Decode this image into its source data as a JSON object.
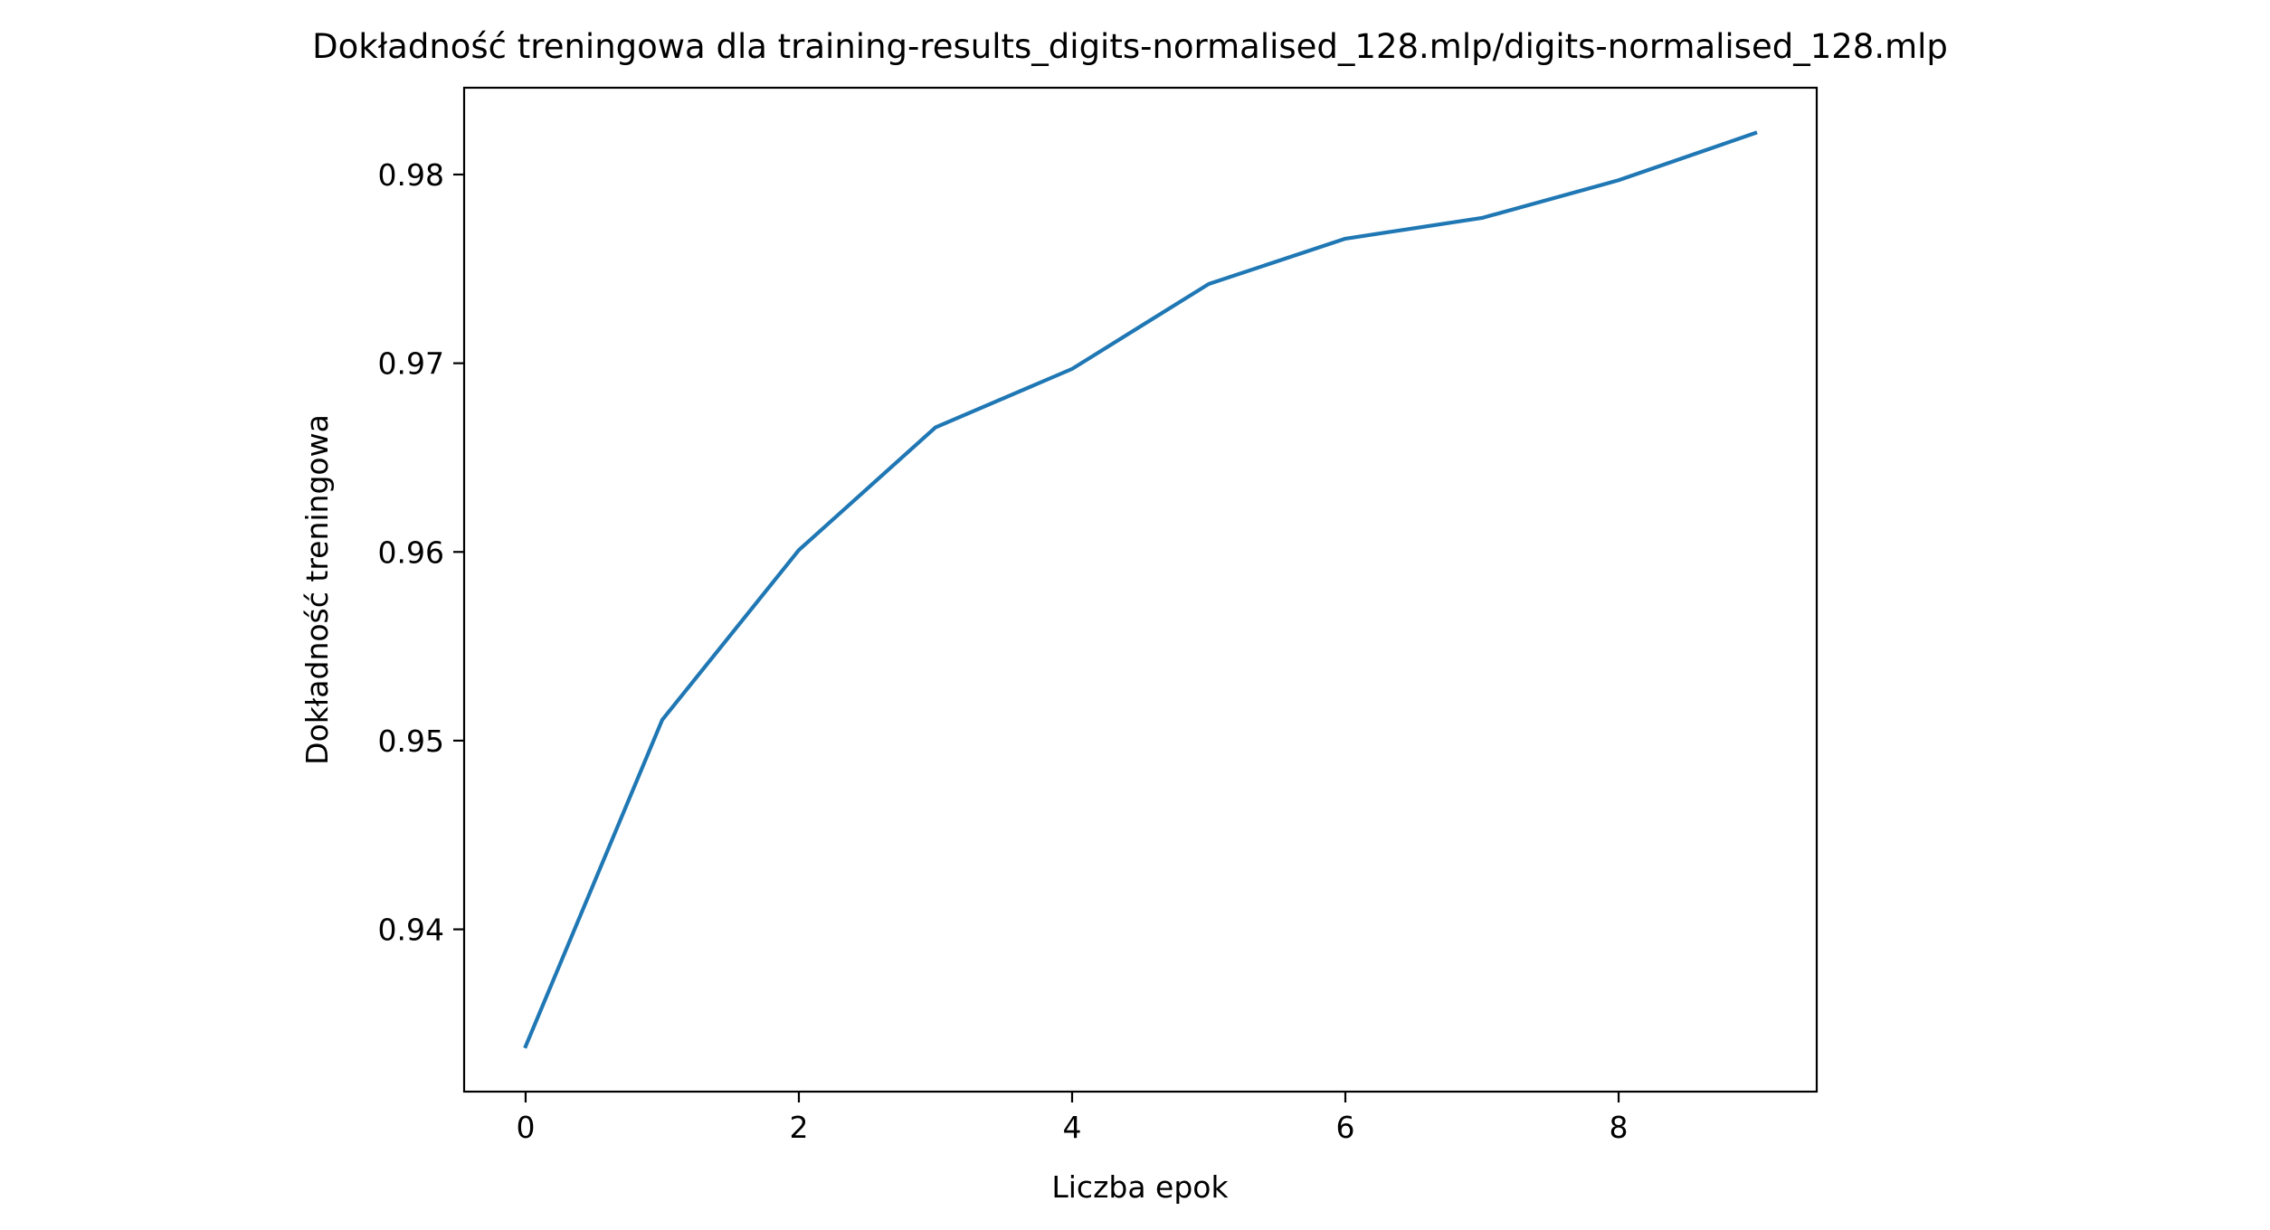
{
  "chart_data": {
    "type": "line",
    "title": "Dokładność treningowa dla training-results_digits-normalised_128.mlp/digits-normalised_128.mlp",
    "xlabel": "Liczba epok",
    "ylabel": "Dokładność treningowa",
    "x": [
      0,
      1,
      2,
      3,
      4,
      5,
      6,
      7,
      8,
      9
    ],
    "series": [
      {
        "values": [
          0.9338,
          0.9511,
          0.9601,
          0.9666,
          0.9697,
          0.9742,
          0.9766,
          0.9777,
          0.9797,
          0.9822
        ],
        "color": "#1f77b4"
      }
    ],
    "xlim": [
      -0.45,
      9.45
    ],
    "ylim": [
      0.9314,
      0.9846
    ],
    "xticks": [
      0,
      2,
      4,
      6,
      8
    ],
    "xtick_labels": [
      "0",
      "2",
      "4",
      "6",
      "8"
    ],
    "yticks": [
      0.94,
      0.95,
      0.96,
      0.97,
      0.98
    ],
    "ytick_labels": [
      "0.94",
      "0.95",
      "0.96",
      "0.97",
      "0.98"
    ],
    "grid": false,
    "legend": "none"
  }
}
